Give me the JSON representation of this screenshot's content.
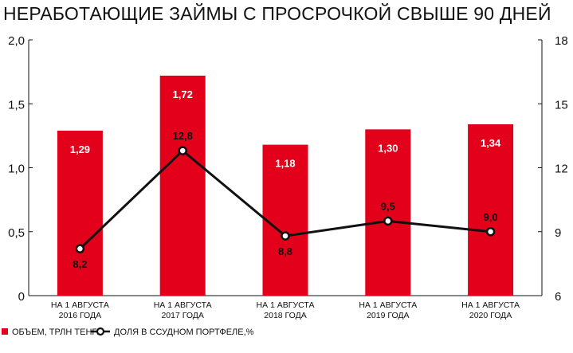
{
  "chart_data": {
    "type": "bar+line",
    "title": "НЕРАБОТАЮЩИЕ ЗАЙМЫ С ПРОСРОЧКОЙ СВЫШЕ 90 ДНЕЙ",
    "categories": [
      [
        "НА 1 АВГУСТА",
        "2016 ГОДА"
      ],
      [
        "НА 1 АВГУСТА",
        "2017 ГОДА"
      ],
      [
        "НА 1 АВГУСТА",
        "2018 ГОДА"
      ],
      [
        "НА 1 АВГУСТА",
        "2019 ГОДА"
      ],
      [
        "НА 1 АВГУСТА",
        "2020 ГОДА"
      ]
    ],
    "bars": {
      "name": "ОБЪЕМ, ТРЛН ТЕНГЕ",
      "values": [
        1.29,
        1.72,
        1.18,
        1.3,
        1.34
      ],
      "labels": [
        "1,29",
        "1,72",
        "1,18",
        "1,30",
        "1,34"
      ],
      "color": "#e2001a"
    },
    "line": {
      "name": "ДОЛЯ В ССУДНОМ ПОРТФЕЛЕ,%",
      "values": [
        8.2,
        12.8,
        8.8,
        9.5,
        9.0
      ],
      "labels": [
        "8,2",
        "12,8",
        "8,8",
        "9,5",
        "9,0"
      ],
      "color": "#111111"
    },
    "y_left": {
      "min": 0,
      "max": 2.0,
      "ticks": [
        0,
        0.5,
        1.0,
        1.5,
        2.0
      ],
      "tick_labels": [
        "0",
        "0,5",
        "1,0",
        "1,5",
        "2,0"
      ]
    },
    "y_right": {
      "min": 6,
      "max": 18,
      "ticks": [
        6,
        9,
        12,
        15,
        18
      ],
      "tick_labels": [
        "6",
        "9",
        "12",
        "15",
        "18"
      ]
    },
    "grid": false,
    "legend_position": "bottom-left"
  }
}
